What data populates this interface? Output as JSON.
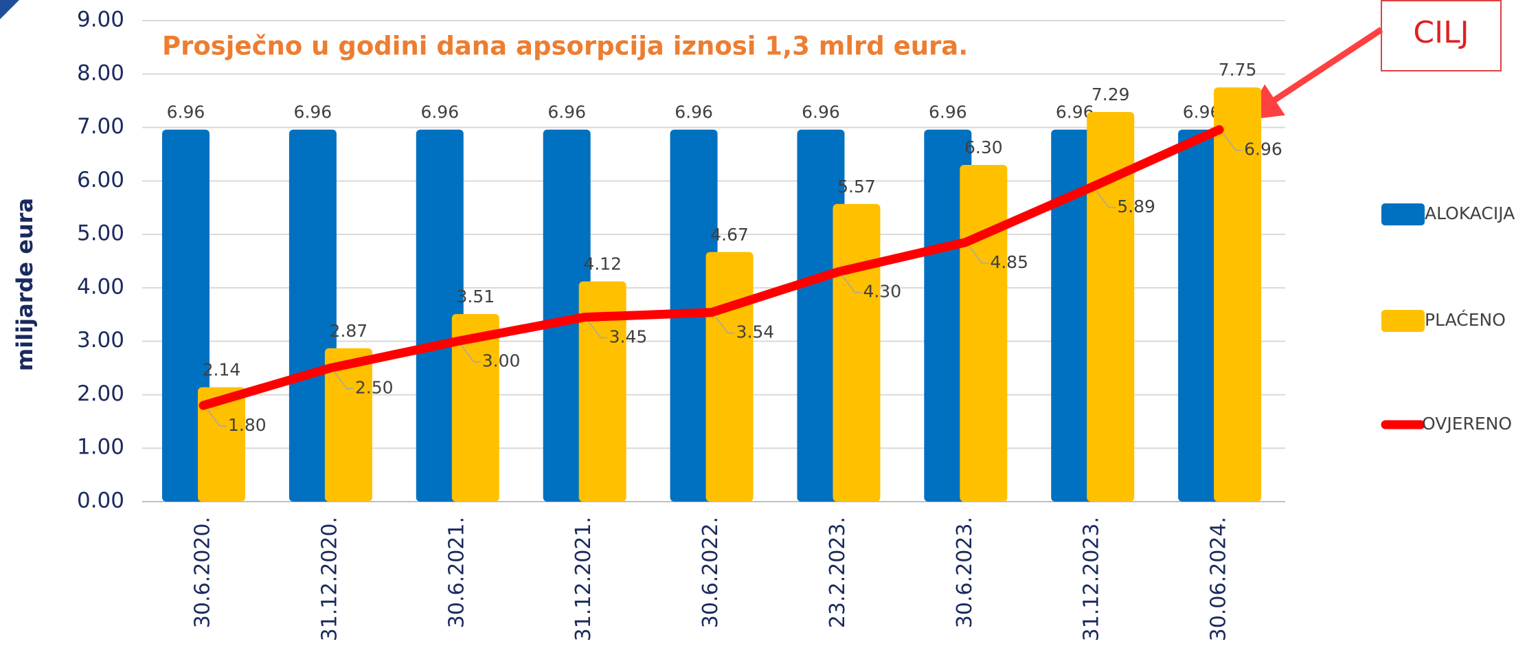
{
  "chart_data": {
    "type": "bar",
    "title": "Prosječno u godini dana apsorpcija iznosi 1,3 mlrd eura.",
    "y_label": "milijarde eura",
    "annotation": "CILJ",
    "categories": [
      "30.6.2020.",
      "31.12.2020.",
      "30.6.2021.",
      "31.12.2021.",
      "30.6.2022.",
      "23.2.2023.",
      "30.6.2023.",
      "31.12.2023.",
      "30.06.2024."
    ],
    "series": [
      {
        "name": "ALOKACIJA",
        "color": "#0070c0",
        "kind": "bar",
        "values": [
          6.96,
          6.96,
          6.96,
          6.96,
          6.96,
          6.96,
          6.96,
          6.96,
          6.96
        ],
        "value_labels": [
          "6.96",
          "6.96",
          "6.96",
          "6.96",
          "6.96",
          "6.96",
          "6.96",
          "6.96",
          "6.96"
        ]
      },
      {
        "name": "PLAĆENO",
        "color": "#ffc000",
        "kind": "bar",
        "values": [
          2.14,
          2.87,
          3.51,
          4.12,
          4.67,
          5.57,
          6.3,
          7.29,
          7.75
        ],
        "value_labels": [
          "2.14",
          "2.87",
          "3.51",
          "4.12",
          "4.67",
          "5.57",
          "6.30",
          "7.29",
          "7.75"
        ]
      },
      {
        "name": "OVJERENO",
        "color": "#ff0000",
        "kind": "line",
        "values": [
          1.8,
          2.5,
          3.0,
          3.45,
          3.54,
          4.3,
          4.85,
          5.89,
          6.96
        ],
        "value_labels": [
          "1.80",
          "2.50",
          "3.00",
          "3.45",
          "3.54",
          "4.30",
          "4.85",
          "5.89",
          "6.96"
        ]
      }
    ],
    "ylim": [
      0,
      9
    ],
    "yticks": [
      {
        "value": 0,
        "label": "0.00"
      },
      {
        "value": 1,
        "label": "1.00"
      },
      {
        "value": 2,
        "label": "2.00"
      },
      {
        "value": 3,
        "label": "3.00"
      },
      {
        "value": 4,
        "label": "4.00"
      },
      {
        "value": 5,
        "label": "5.00"
      },
      {
        "value": 6,
        "label": "6.00"
      },
      {
        "value": 7,
        "label": "7.00"
      },
      {
        "value": 8,
        "label": "8.00"
      },
      {
        "value": 9,
        "label": "9.00"
      }
    ],
    "grid": true,
    "legend": "right"
  }
}
